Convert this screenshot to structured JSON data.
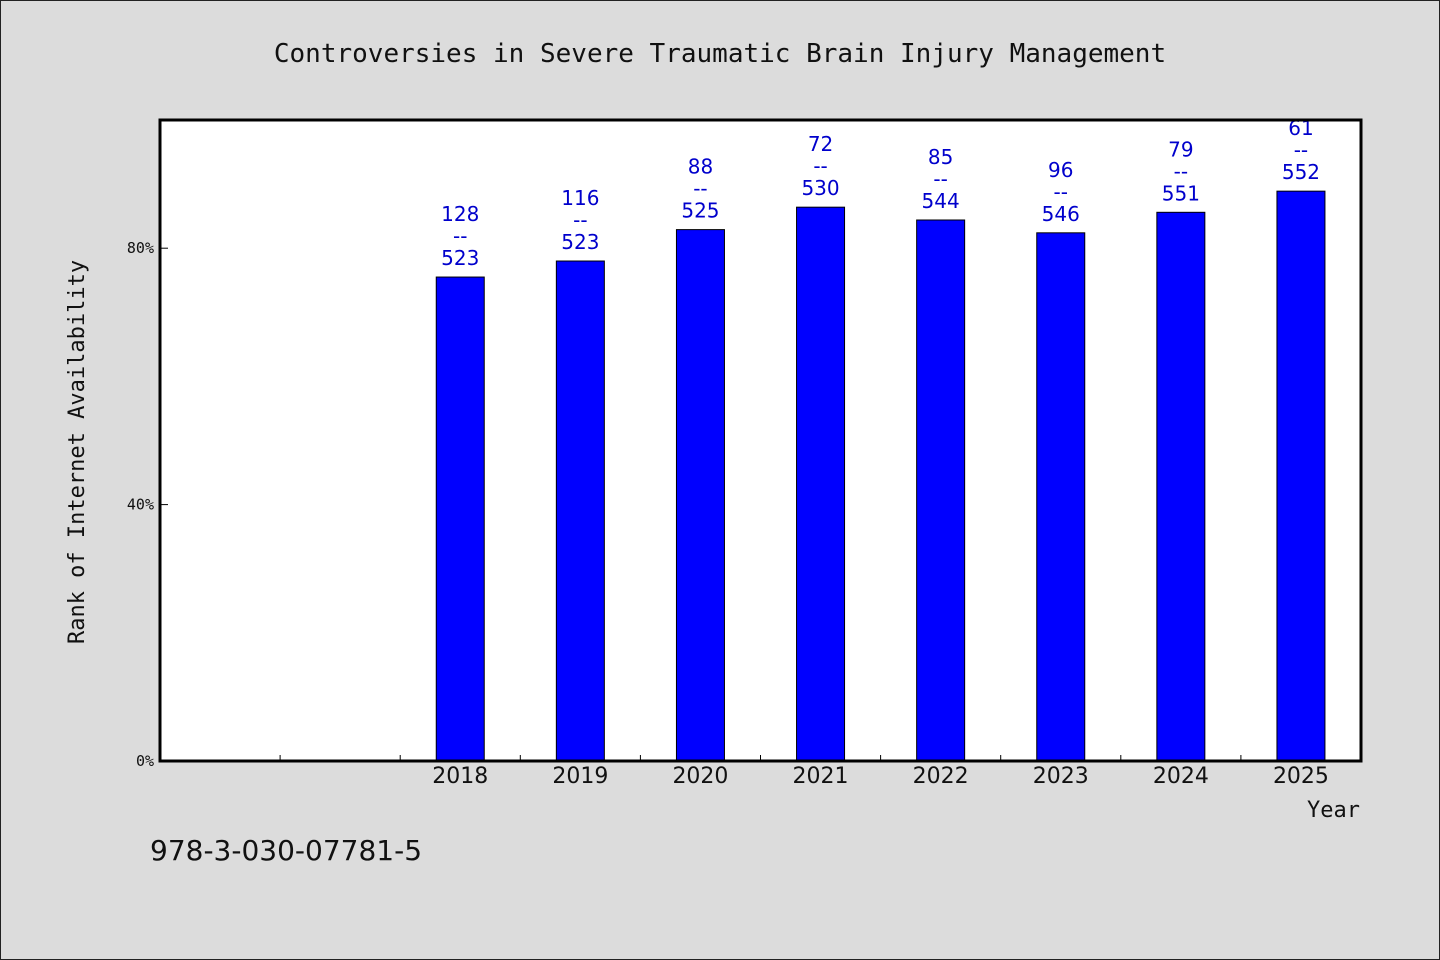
{
  "chart_data": {
    "type": "bar",
    "title": "Controversies in Severe Traumatic Brain Injury Management",
    "xlabel": "Year",
    "ylabel": "Rank of Internet Availability",
    "slots": [
      "",
      "",
      "2018",
      "2019",
      "2020",
      "2021",
      "2022",
      "2023",
      "2024",
      "2025"
    ],
    "categories": [
      "2018",
      "2019",
      "2020",
      "2021",
      "2022",
      "2023",
      "2024",
      "2025"
    ],
    "values": [
      75.5,
      78.0,
      82.9,
      86.4,
      84.4,
      82.4,
      85.6,
      88.9
    ],
    "value_labels": [
      [
        "128",
        "--",
        "523"
      ],
      [
        "116",
        "--",
        "523"
      ],
      [
        "88",
        "--",
        "525"
      ],
      [
        "72",
        "--",
        "530"
      ],
      [
        "85",
        "--",
        "544"
      ],
      [
        "96",
        "--",
        "546"
      ],
      [
        "79",
        "--",
        "551"
      ],
      [
        "61",
        "--",
        "552"
      ]
    ],
    "y_ticks": [
      0,
      40,
      80
    ],
    "y_tick_labels": [
      "0%",
      "40%",
      "80%"
    ],
    "ylim": [
      0,
      100
    ],
    "grid": false,
    "bar_color": "#0000ff",
    "label_color": "#0000cc",
    "plot_background": "#ffffff",
    "page_background": "#dcdcdc"
  },
  "footer": {
    "isbn": "978-3-030-07781-5"
  }
}
